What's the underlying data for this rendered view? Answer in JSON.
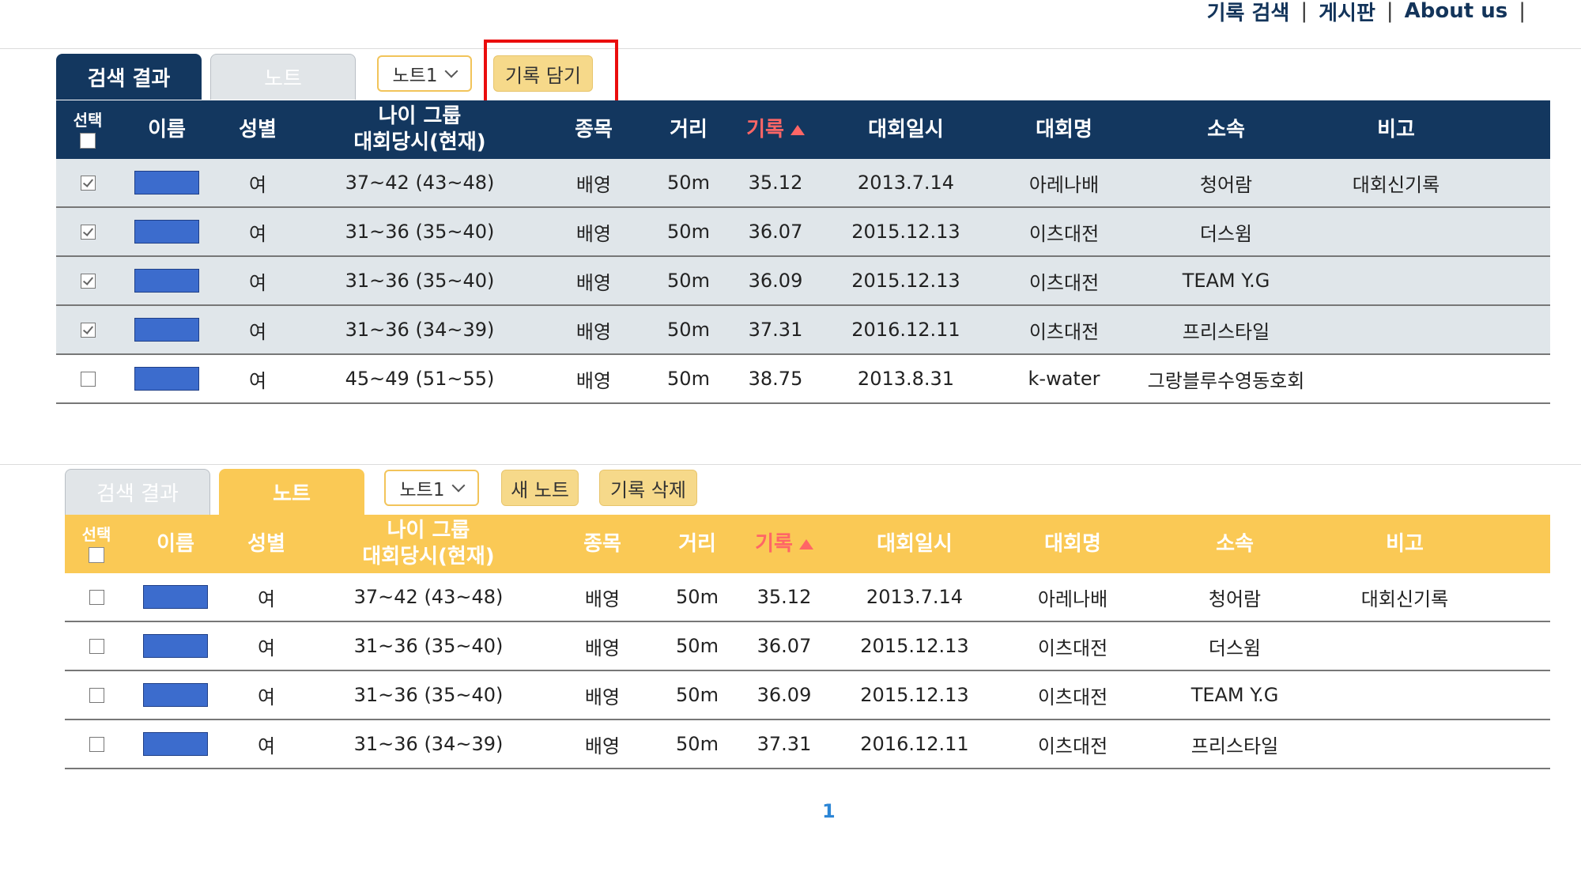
{
  "nav": {
    "items": [
      "기록 검색",
      "게시판",
      "About us"
    ]
  },
  "columns": [
    "선택",
    "이름",
    "성별",
    "나이 그룹",
    "대회당시(현재)",
    "종목",
    "거리",
    "기록",
    "대회일시",
    "대회명",
    "소속",
    "비고"
  ],
  "top": {
    "tabs": {
      "search": "검색 결과",
      "note": "노트"
    },
    "dropdown": "노트1",
    "save_button": "기록 담기",
    "rows": [
      {
        "checked": true,
        "gender": "여",
        "age": "37~42 (43~48)",
        "event": "배영",
        "distance": "50m",
        "record": "35.12",
        "date": "2013.7.14",
        "meet": "아레나배",
        "team": "청어람",
        "note": "대회신기록"
      },
      {
        "checked": true,
        "gender": "여",
        "age": "31~36 (35~40)",
        "event": "배영",
        "distance": "50m",
        "record": "36.07",
        "date": "2015.12.13",
        "meet": "이츠대전",
        "team": "더스윔",
        "note": ""
      },
      {
        "checked": true,
        "gender": "여",
        "age": "31~36 (35~40)",
        "event": "배영",
        "distance": "50m",
        "record": "36.09",
        "date": "2015.12.13",
        "meet": "이츠대전",
        "team": "TEAM Y.G",
        "note": ""
      },
      {
        "checked": true,
        "gender": "여",
        "age": "31~36 (34~39)",
        "event": "배영",
        "distance": "50m",
        "record": "37.31",
        "date": "2016.12.11",
        "meet": "이츠대전",
        "team": "프리스타일",
        "note": ""
      },
      {
        "checked": false,
        "gender": "여",
        "age": "45~49 (51~55)",
        "event": "배영",
        "distance": "50m",
        "record": "38.75",
        "date": "2013.8.31",
        "meet": "k-water",
        "team": "그랑블루수영동호회",
        "note": ""
      }
    ]
  },
  "bottom": {
    "tabs": {
      "search": "검색 결과",
      "note": "노트"
    },
    "dropdown": "노트1",
    "new_note_button": "새 노트",
    "delete_button": "기록 삭제",
    "rows": [
      {
        "checked": false,
        "gender": "여",
        "age": "37~42 (43~48)",
        "event": "배영",
        "distance": "50m",
        "record": "35.12",
        "date": "2013.7.14",
        "meet": "아레나배",
        "team": "청어람",
        "note": "대회신기록"
      },
      {
        "checked": false,
        "gender": "여",
        "age": "31~36 (35~40)",
        "event": "배영",
        "distance": "50m",
        "record": "36.07",
        "date": "2015.12.13",
        "meet": "이츠대전",
        "team": "더스윔",
        "note": ""
      },
      {
        "checked": false,
        "gender": "여",
        "age": "31~36 (35~40)",
        "event": "배영",
        "distance": "50m",
        "record": "36.09",
        "date": "2015.12.13",
        "meet": "이츠대전",
        "team": "TEAM Y.G",
        "note": ""
      },
      {
        "checked": false,
        "gender": "여",
        "age": "31~36 (34~39)",
        "event": "배영",
        "distance": "50m",
        "record": "37.31",
        "date": "2016.12.11",
        "meet": "이츠대전",
        "team": "프리스타일",
        "note": ""
      }
    ]
  },
  "pagination": {
    "current": "1"
  },
  "colors": {
    "navy": "#13375f",
    "yellow": "#fac955",
    "sort_red": "#ff6666",
    "highlight_red": "#ea0d0d",
    "name_blue": "#3c6ccd"
  }
}
